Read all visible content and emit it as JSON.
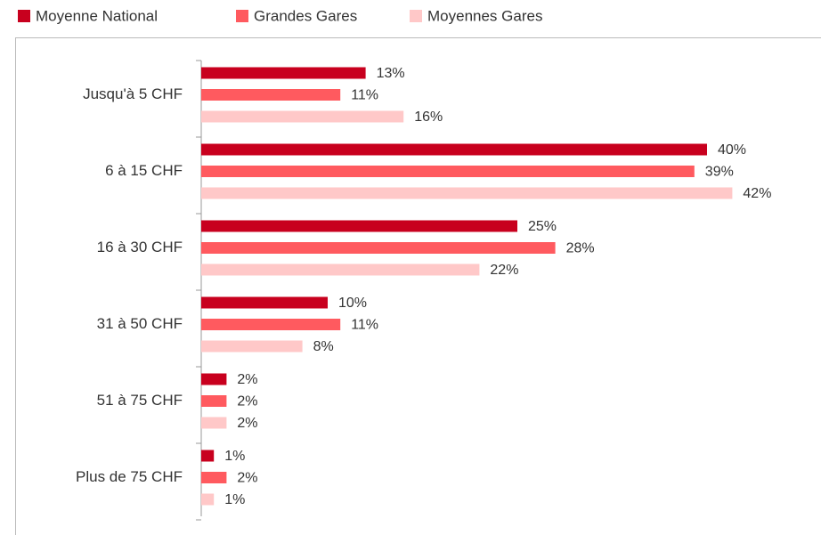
{
  "chart_data": {
    "type": "bar",
    "orientation": "horizontal",
    "categories": [
      "Jusqu'à 5 CHF",
      "6 à 15 CHF",
      "16 à 30 CHF",
      "31 à 50 CHF",
      "51 à 75 CHF",
      "Plus de 75 CHF"
    ],
    "series": [
      {
        "name": "Moyenne National",
        "color": "#c8001e",
        "values": [
          13,
          40,
          25,
          10,
          2,
          1
        ],
        "value_labels": [
          "13%",
          "40%",
          "25%",
          "10%",
          "2%",
          "1%"
        ]
      },
      {
        "name": "Grandes Gares",
        "color": "#ff5a5f",
        "values": [
          11,
          39,
          28,
          11,
          2,
          2
        ],
        "value_labels": [
          "11%",
          "39%",
          "28%",
          "11%",
          "2%",
          "2%"
        ]
      },
      {
        "name": "Moyennes Gares",
        "color": "#ffc8c8",
        "values": [
          16,
          42,
          22,
          8,
          2,
          1
        ],
        "value_labels": [
          "16%",
          "42%",
          "22%",
          "8%",
          "2%",
          "1%"
        ]
      }
    ]
  }
}
